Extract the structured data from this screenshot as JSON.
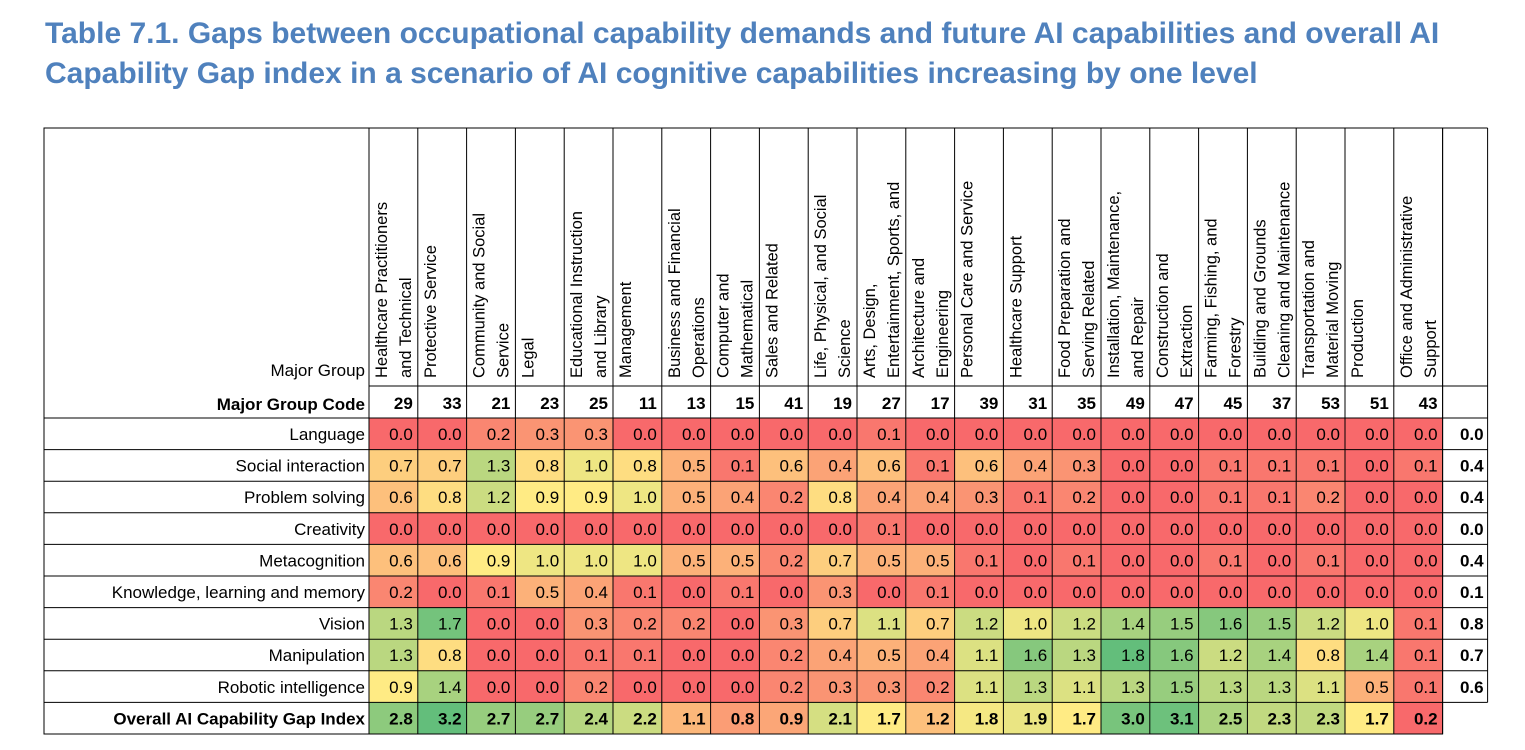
{
  "title": {
    "line1": "Table 7.1. Gaps between occupational capability demands and future AI capabilities and overall AI",
    "line2": "Capability Gap index in a scenario of AI cognitive capabilities increasing by one level"
  },
  "table": {
    "corner_label": "Major Group",
    "code_label": "Major Group Code",
    "columns": [
      {
        "name": [
          "Healthcare Practitioners",
          "and Technical"
        ],
        "code": "29"
      },
      {
        "name": [
          "Protective Service"
        ],
        "code": "33"
      },
      {
        "name": [
          "Community and Social",
          "Service"
        ],
        "code": "21"
      },
      {
        "name": [
          "Legal"
        ],
        "code": "23"
      },
      {
        "name": [
          "Educational Instruction",
          "and Library"
        ],
        "code": "25"
      },
      {
        "name": [
          "Management"
        ],
        "code": "11"
      },
      {
        "name": [
          "Business and Financial",
          "Operations"
        ],
        "code": "13"
      },
      {
        "name": [
          "Computer and",
          "Mathematical"
        ],
        "code": "15"
      },
      {
        "name": [
          "Sales and Related"
        ],
        "code": "41"
      },
      {
        "name": [
          "Life, Physical, and Social",
          "Science"
        ],
        "code": "19"
      },
      {
        "name": [
          "Arts, Design,",
          "Entertainment, Sports, and"
        ],
        "code": "27"
      },
      {
        "name": [
          "Architecture and",
          "Engineering"
        ],
        "code": "17"
      },
      {
        "name": [
          "Personal Care and Service"
        ],
        "code": "39"
      },
      {
        "name": [
          "Healthcare Support"
        ],
        "code": "31"
      },
      {
        "name": [
          "Food Preparation and",
          "Serving Related"
        ],
        "code": "35"
      },
      {
        "name": [
          "Installation, Maintenance,",
          "and Repair"
        ],
        "code": "49"
      },
      {
        "name": [
          "Construction and",
          "Extraction"
        ],
        "code": "47"
      },
      {
        "name": [
          "Farming, Fishing, and",
          "Forestry"
        ],
        "code": "45"
      },
      {
        "name": [
          "Building and Grounds",
          "Cleaning and Maintenance"
        ],
        "code": "37"
      },
      {
        "name": [
          "Transportation and",
          "Material Moving"
        ],
        "code": "53"
      },
      {
        "name": [
          "Production"
        ],
        "code": "51"
      },
      {
        "name": [
          "Office and Administrative",
          "Support"
        ],
        "code": "43"
      }
    ],
    "rows": [
      {
        "label": "Language",
        "values": [
          "0.0",
          "0.0",
          "0.2",
          "0.3",
          "0.3",
          "0.0",
          "0.0",
          "0.0",
          "0.0",
          "0.0",
          "0.1",
          "0.0",
          "0.0",
          "0.0",
          "0.0",
          "0.0",
          "0.0",
          "0.0",
          "0.0",
          "0.0",
          "0.0",
          "0.0"
        ],
        "total": "0.0"
      },
      {
        "label": "Social interaction",
        "values": [
          "0.7",
          "0.7",
          "1.3",
          "0.8",
          "1.0",
          "0.8",
          "0.5",
          "0.1",
          "0.6",
          "0.4",
          "0.6",
          "0.1",
          "0.6",
          "0.4",
          "0.3",
          "0.0",
          "0.0",
          "0.1",
          "0.1",
          "0.1",
          "0.0",
          "0.1"
        ],
        "total": "0.4"
      },
      {
        "label": "Problem solving",
        "values": [
          "0.6",
          "0.8",
          "1.2",
          "0.9",
          "0.9",
          "1.0",
          "0.5",
          "0.4",
          "0.2",
          "0.8",
          "0.4",
          "0.4",
          "0.3",
          "0.1",
          "0.2",
          "0.0",
          "0.0",
          "0.1",
          "0.1",
          "0.2",
          "0.0",
          "0.0"
        ],
        "total": "0.4"
      },
      {
        "label": "Creativity",
        "values": [
          "0.0",
          "0.0",
          "0.0",
          "0.0",
          "0.0",
          "0.0",
          "0.0",
          "0.0",
          "0.0",
          "0.0",
          "0.1",
          "0.0",
          "0.0",
          "0.0",
          "0.0",
          "0.0",
          "0.0",
          "0.0",
          "0.0",
          "0.0",
          "0.0",
          "0.0"
        ],
        "total": "0.0"
      },
      {
        "label": "Metacognition",
        "values": [
          "0.6",
          "0.6",
          "0.9",
          "1.0",
          "1.0",
          "1.0",
          "0.5",
          "0.5",
          "0.2",
          "0.7",
          "0.5",
          "0.5",
          "0.1",
          "0.0",
          "0.1",
          "0.0",
          "0.0",
          "0.1",
          "0.0",
          "0.1",
          "0.0",
          "0.0"
        ],
        "total": "0.4"
      },
      {
        "label": "Knowledge, learning and memory",
        "values": [
          "0.2",
          "0.0",
          "0.1",
          "0.5",
          "0.4",
          "0.1",
          "0.0",
          "0.1",
          "0.0",
          "0.3",
          "0.0",
          "0.1",
          "0.0",
          "0.0",
          "0.0",
          "0.0",
          "0.0",
          "0.0",
          "0.0",
          "0.0",
          "0.0",
          "0.0"
        ],
        "total": "0.1"
      },
      {
        "label": "Vision",
        "values": [
          "1.3",
          "1.7",
          "0.0",
          "0.0",
          "0.3",
          "0.2",
          "0.2",
          "0.0",
          "0.3",
          "0.7",
          "1.1",
          "0.7",
          "1.2",
          "1.0",
          "1.2",
          "1.4",
          "1.5",
          "1.6",
          "1.5",
          "1.2",
          "1.0",
          "0.1"
        ],
        "total": "0.8"
      },
      {
        "label": "Manipulation",
        "values": [
          "1.3",
          "0.8",
          "0.0",
          "0.0",
          "0.1",
          "0.1",
          "0.0",
          "0.0",
          "0.2",
          "0.4",
          "0.5",
          "0.4",
          "1.1",
          "1.6",
          "1.3",
          "1.8",
          "1.6",
          "1.2",
          "1.4",
          "0.8",
          "1.4",
          "0.1"
        ],
        "total": "0.7"
      },
      {
        "label": "Robotic intelligence",
        "values": [
          "0.9",
          "1.4",
          "0.0",
          "0.0",
          "0.2",
          "0.0",
          "0.0",
          "0.0",
          "0.2",
          "0.3",
          "0.3",
          "0.2",
          "1.1",
          "1.3",
          "1.1",
          "1.3",
          "1.5",
          "1.3",
          "1.3",
          "1.1",
          "0.5",
          "0.1"
        ],
        "total": "0.6"
      }
    ],
    "index_row": {
      "label": "Overall AI Capability Gap Index",
      "values": [
        "2.8",
        "3.2",
        "2.7",
        "2.7",
        "2.4",
        "2.2",
        "1.1",
        "0.8",
        "0.9",
        "2.1",
        "1.7",
        "1.2",
        "1.8",
        "1.9",
        "1.7",
        "3.0",
        "3.1",
        "2.5",
        "2.3",
        "2.3",
        "1.7",
        "0.2"
      ]
    },
    "colors": {
      "low": "#f8696b",
      "mid": "#ffeb84",
      "high": "#63be7b",
      "border": "#000000",
      "title": "#4f81bd"
    }
  }
}
